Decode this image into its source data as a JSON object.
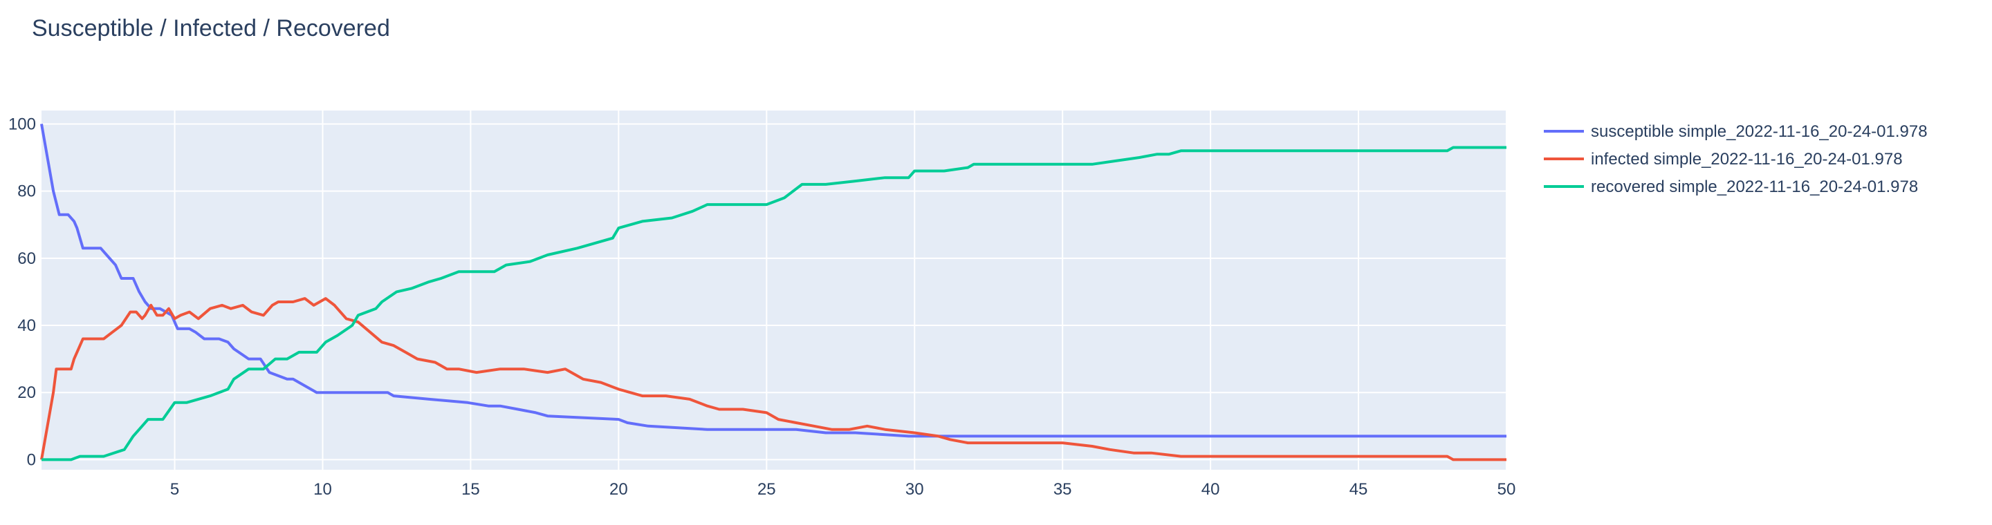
{
  "chart_data": {
    "type": "line",
    "title": "Susceptible / Infected / Recovered",
    "xlabel": "",
    "ylabel": "",
    "xlim": [
      0.5,
      50
    ],
    "ylim": [
      -3,
      104
    ],
    "xticks": [
      5,
      10,
      15,
      20,
      25,
      30,
      35,
      40,
      45,
      50
    ],
    "yticks": [
      0,
      20,
      40,
      60,
      80,
      100
    ],
    "grid": true,
    "legend_position": "right",
    "plot_background": "#e5ecf6",
    "series": [
      {
        "name": "susceptible simple_2022-11-16_20-24-01.978",
        "color": "#636efa",
        "x": [
          0.5,
          0.9,
          1.1,
          1.4,
          1.6,
          1.7,
          1.9,
          2.5,
          2.7,
          3.0,
          3.2,
          3.6,
          3.8,
          4.0,
          4.2,
          4.5,
          4.9,
          5.1,
          5.5,
          5.7,
          6.0,
          6.5,
          6.8,
          7.0,
          7.5,
          7.9,
          8.2,
          8.8,
          9.0,
          9.4,
          9.8,
          12.2,
          12.4,
          13.6,
          14.9,
          15.6,
          16.0,
          16.6,
          17.2,
          17.6,
          20.0,
          20.3,
          21.0,
          23.0,
          26.0,
          27.0,
          28.0,
          29.8,
          30.0,
          50.0
        ],
        "values": [
          100,
          80,
          73,
          73,
          71,
          69,
          63,
          63,
          61,
          58,
          54,
          54,
          50,
          47,
          45,
          45,
          43,
          39,
          39,
          38,
          36,
          36,
          35,
          33,
          30,
          30,
          26,
          24,
          24,
          22,
          20,
          20,
          19,
          18,
          17,
          16,
          16,
          15,
          14,
          13,
          12,
          11,
          10,
          9,
          9,
          8,
          8,
          7,
          7,
          7
        ]
      },
      {
        "name": "infected simple_2022-11-16_20-24-01.978",
        "color": "#ef553b",
        "x": [
          0.5,
          0.9,
          1.0,
          1.5,
          1.6,
          1.9,
          2.6,
          2.9,
          3.2,
          3.5,
          3.7,
          3.9,
          4.0,
          4.2,
          4.4,
          4.6,
          4.8,
          5.0,
          5.2,
          5.5,
          5.8,
          6.2,
          6.6,
          6.9,
          7.3,
          7.6,
          8.0,
          8.3,
          8.5,
          9.0,
          9.4,
          9.7,
          9.9,
          10.1,
          10.4,
          10.8,
          11.2,
          11.6,
          12.0,
          12.4,
          12.8,
          13.2,
          13.8,
          14.2,
          14.6,
          15.2,
          16.0,
          16.8,
          17.6,
          18.2,
          18.8,
          19.4,
          20.0,
          20.8,
          21.6,
          22.4,
          23.0,
          23.4,
          24.2,
          25.0,
          25.4,
          26.0,
          26.6,
          27.2,
          27.8,
          28.4,
          29.0,
          30.0,
          30.8,
          31.2,
          31.8,
          33.0,
          35.0,
          36.0,
          36.6,
          37.4,
          38.0,
          39.0,
          39.6,
          48.0,
          48.2,
          50.0
        ],
        "values": [
          0,
          20,
          27,
          27,
          30,
          36,
          36,
          38,
          40,
          44,
          44,
          42,
          43,
          46,
          43,
          43,
          45,
          42,
          43,
          44,
          42,
          45,
          46,
          45,
          46,
          44,
          43,
          46,
          47,
          47,
          48,
          46,
          47,
          48,
          46,
          42,
          41,
          38,
          35,
          34,
          32,
          30,
          29,
          27,
          27,
          26,
          27,
          27,
          26,
          27,
          24,
          23,
          21,
          19,
          19,
          18,
          16,
          15,
          15,
          14,
          12,
          11,
          10,
          9,
          9,
          10,
          9,
          8,
          7,
          6,
          5,
          5,
          5,
          4,
          3,
          2,
          2,
          1,
          1,
          1,
          0,
          0
        ]
      },
      {
        "name": "recovered simple_2022-11-16_20-24-01.978",
        "color": "#00cc96",
        "x": [
          0.5,
          1.5,
          1.8,
          2.6,
          3.3,
          3.6,
          3.9,
          4.1,
          4.6,
          5.0,
          5.4,
          5.8,
          6.2,
          6.8,
          7.0,
          7.5,
          8.0,
          8.4,
          8.8,
          9.2,
          9.8,
          10.1,
          10.5,
          11.0,
          11.2,
          11.8,
          12.0,
          12.5,
          13.0,
          13.6,
          14.0,
          14.6,
          15.8,
          16.2,
          17.0,
          17.6,
          18.6,
          19.0,
          19.8,
          20.0,
          20.8,
          21.8,
          22.5,
          23.0,
          25.0,
          25.6,
          26.2,
          27.0,
          28.0,
          29.0,
          29.8,
          30.0,
          31.0,
          31.8,
          32.0,
          36.0,
          36.8,
          37.6,
          38.2,
          38.6,
          39.0,
          48.0,
          48.2,
          50.0
        ],
        "values": [
          0,
          0,
          1,
          1,
          3,
          7,
          10,
          12,
          12,
          17,
          17,
          18,
          19,
          21,
          24,
          27,
          27,
          30,
          30,
          32,
          32,
          35,
          37,
          40,
          43,
          45,
          47,
          50,
          51,
          53,
          54,
          56,
          56,
          58,
          59,
          61,
          63,
          64,
          66,
          69,
          71,
          72,
          74,
          76,
          76,
          78,
          82,
          82,
          83,
          84,
          84,
          86,
          86,
          87,
          88,
          88,
          89,
          90,
          91,
          91,
          92,
          92,
          93,
          93
        ]
      }
    ]
  }
}
